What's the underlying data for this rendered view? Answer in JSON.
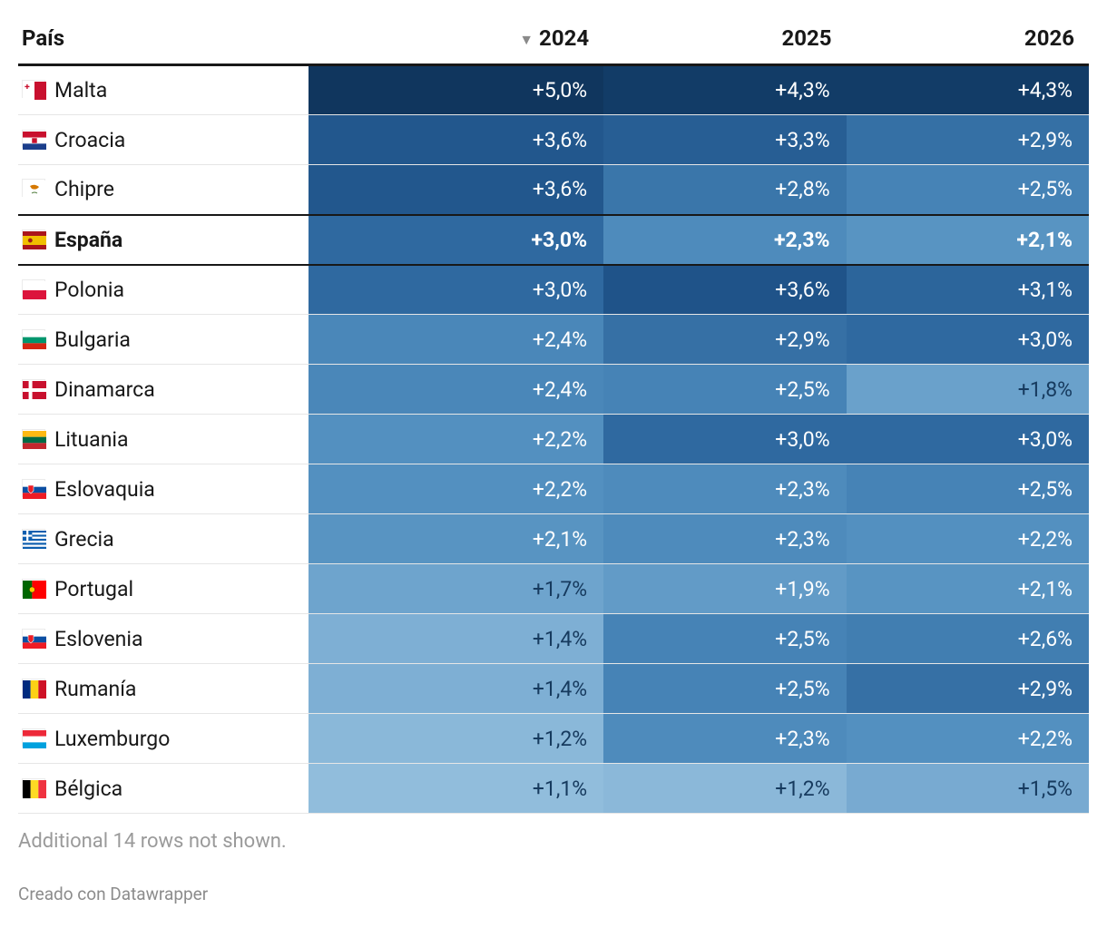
{
  "table": {
    "type": "table-heatmap",
    "sort_column_index": 0,
    "sort_direction": "desc",
    "columns": [
      {
        "key": "country",
        "label": "País",
        "is_country": true
      },
      {
        "key": "y2024",
        "label": "2024"
      },
      {
        "key": "y2025",
        "label": "2025"
      },
      {
        "key": "y2026",
        "label": "2026"
      }
    ],
    "rows": [
      {
        "country": "Malta",
        "flag": "malta",
        "highlight": false,
        "values": [
          "+5,0%",
          "+4,3%",
          "+4,3%"
        ],
        "bg": [
          "#10365e",
          "#123c67",
          "#123c67"
        ]
      },
      {
        "country": "Croacia",
        "flag": "croatia",
        "highlight": false,
        "values": [
          "+3,6%",
          "+3,3%",
          "+2,9%"
        ],
        "bg": [
          "#22578d",
          "#275e94",
          "#3570a5"
        ]
      },
      {
        "country": "Chipre",
        "flag": "cyprus",
        "highlight": false,
        "values": [
          "+3,6%",
          "+2,8%",
          "+2,5%"
        ],
        "bg": [
          "#22578d",
          "#3a76aa",
          "#4683b6"
        ]
      },
      {
        "country": "España",
        "flag": "spain",
        "highlight": true,
        "values": [
          "+3,0%",
          "+2,3%",
          "+2,1%"
        ],
        "bg": [
          "#2f69a0",
          "#4e8bbc",
          "#5894c2"
        ]
      },
      {
        "country": "Polonia",
        "flag": "poland",
        "highlight": false,
        "values": [
          "+3,0%",
          "+3,6%",
          "+3,1%"
        ],
        "bg": [
          "#2f69a0",
          "#1f5389",
          "#2c659b"
        ]
      },
      {
        "country": "Bulgaria",
        "flag": "bulgaria",
        "highlight": false,
        "values": [
          "+2,4%",
          "+2,9%",
          "+3,0%"
        ],
        "bg": [
          "#4a87b9",
          "#3670a5",
          "#2f69a0"
        ]
      },
      {
        "country": "Dinamarca",
        "flag": "denmark",
        "highlight": false,
        "values": [
          "+2,4%",
          "+2,5%",
          "+1,8%"
        ],
        "bg": [
          "#4a87b9",
          "#4683b6",
          "#6aa1cb"
        ]
      },
      {
        "country": "Lituania",
        "flag": "lithuania",
        "highlight": false,
        "values": [
          "+2,2%",
          "+3,0%",
          "+3,0%"
        ],
        "bg": [
          "#5390c0",
          "#2f69a0",
          "#2f69a0"
        ]
      },
      {
        "country": "Eslovaquia",
        "flag": "slovakia",
        "highlight": false,
        "values": [
          "+2,2%",
          "+2,3%",
          "+2,5%"
        ],
        "bg": [
          "#5390c0",
          "#4e8bbc",
          "#4683b6"
        ]
      },
      {
        "country": "Grecia",
        "flag": "greece",
        "highlight": false,
        "values": [
          "+2,1%",
          "+2,3%",
          "+2,2%"
        ],
        "bg": [
          "#5894c2",
          "#4e8bbc",
          "#5390c0"
        ]
      },
      {
        "country": "Portugal",
        "flag": "portugal",
        "highlight": false,
        "values": [
          "+1,7%",
          "+1,9%",
          "+2,1%"
        ],
        "bg": [
          "#6ea4cd",
          "#629bc7",
          "#5894c2"
        ]
      },
      {
        "country": "Eslovenia",
        "flag": "slovenia",
        "highlight": false,
        "values": [
          "+1,4%",
          "+2,5%",
          "+2,6%"
        ],
        "bg": [
          "#7eafd4",
          "#4683b6",
          "#417eb1"
        ]
      },
      {
        "country": "Rumanía",
        "flag": "romania",
        "highlight": false,
        "values": [
          "+1,4%",
          "+2,5%",
          "+2,9%"
        ],
        "bg": [
          "#7eafd4",
          "#4683b6",
          "#3670a5"
        ]
      },
      {
        "country": "Luxemburgo",
        "flag": "luxembourg",
        "highlight": false,
        "values": [
          "+1,2%",
          "+2,3%",
          "+2,2%"
        ],
        "bg": [
          "#8ab8d9",
          "#4e8bbc",
          "#5390c0"
        ]
      },
      {
        "country": "Bélgica",
        "flag": "belgium",
        "highlight": false,
        "values": [
          "+1,1%",
          "+1,2%",
          "+1,5%"
        ],
        "bg": [
          "#91bddc",
          "#8bb8d9",
          "#78aad1"
        ]
      }
    ],
    "text_color_on_cells": "#ffffff",
    "dark_text_threshold_bg": "#7eafd4",
    "dark_text_color": "#163a5e"
  },
  "footer_note": "Additional 14 rows not shown.",
  "credit": "Creado con Datawrapper",
  "flags": {
    "malta": {
      "stripes": "horizontal",
      "colors": [
        "#ffffff",
        "#c8102e"
      ],
      "layout": "vertical-two",
      "special": "malta"
    },
    "croatia": {
      "stripes": "horizontal",
      "colors": [
        "#c8102e",
        "#ffffff",
        "#1b3e8b"
      ],
      "special": "croatia"
    },
    "cyprus": {
      "stripes": "horizontal",
      "colors": [
        "#ffffff"
      ],
      "special": "cyprus"
    },
    "spain": {
      "stripes": "horizontal",
      "colors": [
        "#aa151b",
        "#f1bf00",
        "#aa151b"
      ],
      "weights": [
        1,
        2,
        1
      ],
      "special": "spain"
    },
    "poland": {
      "stripes": "horizontal",
      "colors": [
        "#ffffff",
        "#dc143c"
      ]
    },
    "bulgaria": {
      "stripes": "horizontal",
      "colors": [
        "#ffffff",
        "#00966e",
        "#d62612"
      ]
    },
    "denmark": {
      "stripes": "cross",
      "bg": "#c8102e",
      "cross": "#ffffff"
    },
    "lithuania": {
      "stripes": "horizontal",
      "colors": [
        "#fdb913",
        "#006a44",
        "#c1272d"
      ]
    },
    "slovakia": {
      "stripes": "horizontal",
      "colors": [
        "#ffffff",
        "#0b4ea2",
        "#ee1c25"
      ],
      "special": "slovakia"
    },
    "greece": {
      "stripes": "greece"
    },
    "portugal": {
      "stripes": "vertical",
      "colors": [
        "#006600",
        "#ff0000"
      ],
      "weights": [
        2,
        3
      ],
      "special": "portugal"
    },
    "slovenia": {
      "stripes": "horizontal",
      "colors": [
        "#ffffff",
        "#0b4ea2",
        "#ee1c25"
      ],
      "special": "slovenia"
    },
    "romania": {
      "stripes": "vertical",
      "colors": [
        "#002b7f",
        "#fcd116",
        "#ce1126"
      ]
    },
    "luxembourg": {
      "stripes": "horizontal",
      "colors": [
        "#ed2939",
        "#ffffff",
        "#00a1de"
      ]
    },
    "belgium": {
      "stripes": "vertical",
      "colors": [
        "#000000",
        "#fdda24",
        "#ef3340"
      ]
    }
  }
}
